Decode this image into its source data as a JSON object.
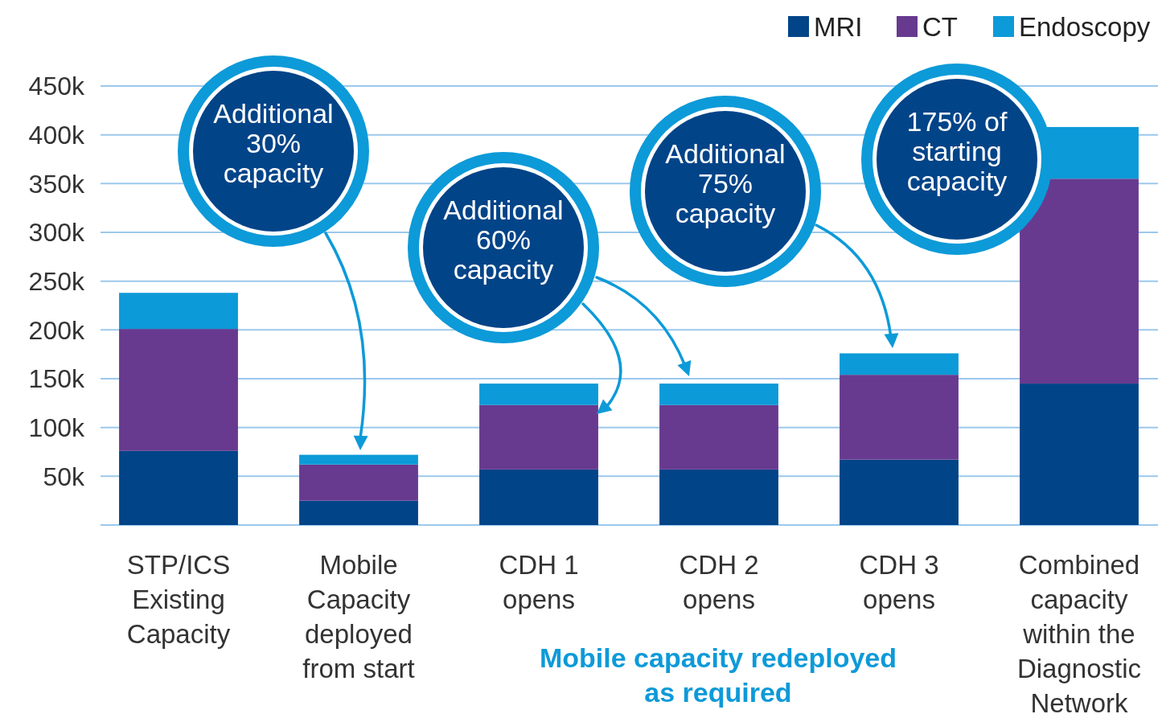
{
  "chart_data": {
    "type": "bar",
    "stacked": true,
    "categories": [
      "STP/ICS\nExisting\nCapacity",
      "Mobile\nCapacity\ndeployed\nfrom start",
      "CDH 1\nopens",
      "CDH 2\nopens",
      "CDH 3\nopens",
      "Combined\ncapacity\nwithin the\nDiagnostic\nNetwork"
    ],
    "series": [
      {
        "name": "MRI",
        "color": "#024488",
        "values": [
          76000,
          25000,
          57000,
          57000,
          67000,
          145000
        ]
      },
      {
        "name": "CT",
        "color": "#673a8f",
        "values": [
          125000,
          37000,
          66000,
          66000,
          87000,
          210000
        ]
      },
      {
        "name": "Endoscopy",
        "color": "#0d9ad8",
        "values": [
          37000,
          10000,
          22000,
          22000,
          22000,
          53000
        ]
      }
    ],
    "ylim": [
      0,
      450000
    ],
    "yticks": [
      {
        "value": 50000,
        "label": "50k"
      },
      {
        "value": 100000,
        "label": "100k"
      },
      {
        "value": 150000,
        "label": "150k"
      },
      {
        "value": 200000,
        "label": "200k"
      },
      {
        "value": 250000,
        "label": "250k"
      },
      {
        "value": 300000,
        "label": "300k"
      },
      {
        "value": 350000,
        "label": "350k"
      },
      {
        "value": 400000,
        "label": "400k"
      },
      {
        "value": 450000,
        "label": "450k"
      }
    ],
    "grid": "y",
    "legend": "top right",
    "annotations": [
      "Additional\n30%\ncapacity",
      "Additional\n60%\ncapacity",
      "Additional\n75%\ncapacity",
      "175% of\nstarting\ncapacity",
      "Mobile capacity redeployed\nas required"
    ]
  }
}
